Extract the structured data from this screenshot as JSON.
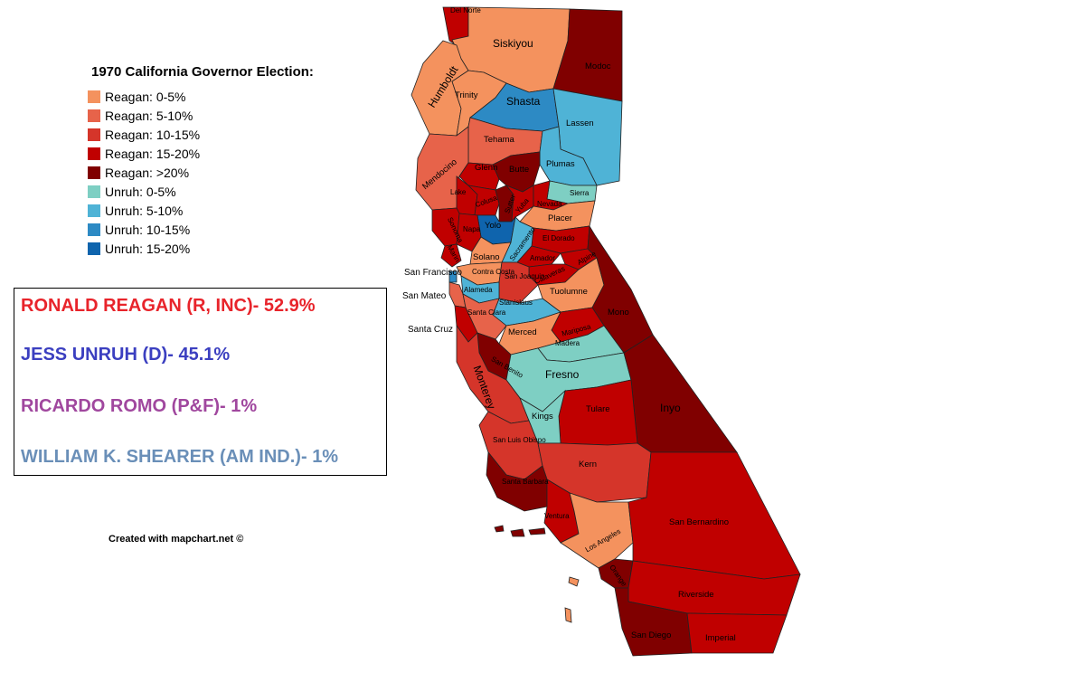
{
  "legend": {
    "title": "1970 California Governor Election:",
    "items": [
      {
        "label": "Reagan: 0-5%",
        "color": "#f4925e"
      },
      {
        "label": "Reagan: 5-10%",
        "color": "#e7634a"
      },
      {
        "label": "Reagan: 10-15%",
        "color": "#d5352a"
      },
      {
        "label": "Reagan: 15-20%",
        "color": "#c00000"
      },
      {
        "label": "Reagan: >20%",
        "color": "#800000"
      },
      {
        "label": "Unruh: 0-5%",
        "color": "#7ecfc3"
      },
      {
        "label": "Unruh: 5-10%",
        "color": "#4fb3d6"
      },
      {
        "label": "Unruh: 10-15%",
        "color": "#2d8ac4"
      },
      {
        "label": "Unruh: 15-20%",
        "color": "#0f64ad"
      }
    ]
  },
  "results": [
    {
      "text": "RONALD REAGAN (R, INC)- 52.9%",
      "color": "#e8242b"
    },
    {
      "text": "JESS UNRUH (D)- 45.1%",
      "color": "#3b3fc0"
    },
    {
      "text": "RICARDO ROMO (P&F)- 1%",
      "color": "#a0479e"
    },
    {
      "text": "WILLIAM K. SHEARER (AM IND.)- 1%",
      "color": "#6a8fb8"
    }
  ],
  "credit": "Created with mapchart.net ©",
  "counties": {
    "del_norte": "Del Norte",
    "siskiyou": "Siskiyou",
    "modoc": "Modoc",
    "humboldt": "Humboldt",
    "trinity": "Trinity",
    "shasta": "Shasta",
    "lassen": "Lassen",
    "tehama": "Tehama",
    "plumas": "Plumas",
    "mendocino": "Mendocino",
    "glenn": "Glenn",
    "butte": "Butte",
    "sierra": "Sierra",
    "lake": "Lake",
    "colusa": "Colusa",
    "sutter": "Sutter",
    "yuba": "Yuba",
    "nevada": "Nevada",
    "placer": "Placer",
    "sonoma": "Sonoma",
    "yolo": "Yolo",
    "napa": "Napa",
    "el_dorado": "El Dorado",
    "sacramento": "Sacramento",
    "marin": "Marin",
    "solano": "Solano",
    "amador": "Amador",
    "alpine": "Alpine",
    "calaveras": "Calaveras",
    "san_francisco": "San Francisco",
    "contra_costa": "Contra Costa",
    "san_joaquin": "San Joaquin",
    "tuolumne": "Tuolumne",
    "alameda": "Alameda",
    "san_mateo": "San Mateo",
    "mono": "Mono",
    "stanislaus": "Stanislaus",
    "santa_clara": "Santa Clara",
    "mariposa": "Mariposa",
    "santa_cruz": "Santa Cruz",
    "merced": "Merced",
    "madera": "Madera",
    "san_benito": "San Benito",
    "fresno": "Fresno",
    "monterey": "Monterey",
    "inyo": "Inyo",
    "tulare": "Tulare",
    "kings": "Kings",
    "san_luis_obispo": "San Luis Obispo",
    "kern": "Kern",
    "santa_barbara": "Santa Barbara",
    "ventura": "Ventura",
    "san_bernardino": "San Bernardino",
    "los_angeles": "Los Angeles",
    "orange": "Orange",
    "riverside": "Riverside",
    "san_diego": "San Diego",
    "imperial": "Imperial"
  }
}
